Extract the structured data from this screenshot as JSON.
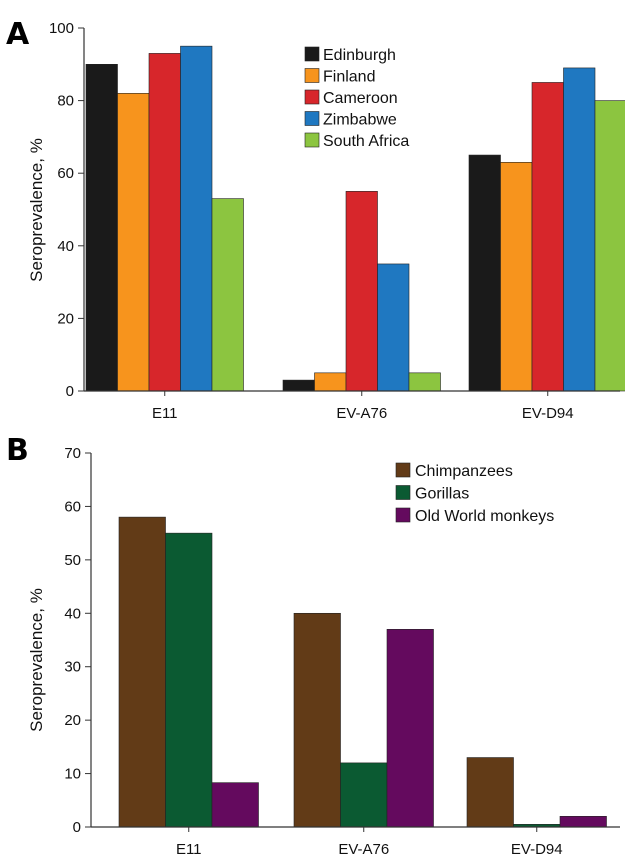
{
  "chart_data": [
    {
      "type": "bar",
      "panel": "A",
      "categories": [
        "E11",
        "EV-A76",
        "EV-D94"
      ],
      "series": [
        {
          "name": "Edinburgh",
          "color": "#1a1a1a",
          "values": [
            90,
            3,
            65
          ]
        },
        {
          "name": "Finland",
          "color": "#f7941d",
          "values": [
            82,
            5,
            63
          ]
        },
        {
          "name": "Cameroon",
          "color": "#d7262b",
          "values": [
            93,
            55,
            85
          ]
        },
        {
          "name": "Zimbabwe",
          "color": "#1f78c1",
          "values": [
            95,
            35,
            89
          ]
        },
        {
          "name": "South Africa",
          "color": "#8cc540",
          "values": [
            53,
            5,
            80
          ]
        }
      ],
      "ylabel": "Seroprevalence, %",
      "ylim": [
        0,
        100
      ],
      "yticks": [
        "0",
        "20",
        "40",
        "60",
        "80",
        "100"
      ],
      "legend": "top-right"
    },
    {
      "type": "bar",
      "panel": "B",
      "categories": [
        "E11",
        "EV-A76",
        "EV-D94"
      ],
      "series": [
        {
          "name": "Chimpanzees",
          "color": "#623b17",
          "values": [
            58,
            40,
            13
          ]
        },
        {
          "name": "Gorillas",
          "color": "#0b5a32",
          "values": [
            55,
            12,
            0.5
          ]
        },
        {
          "name": "Old World monkeys",
          "color": "#640a5e",
          "values": [
            8.3,
            37,
            2
          ]
        }
      ],
      "ylabel": "Seroprevalence, %",
      "ylim": [
        0,
        70
      ],
      "yticks": [
        "0",
        "10",
        "20",
        "30",
        "40",
        "50",
        "60",
        "70"
      ],
      "legend": "top-right"
    }
  ]
}
